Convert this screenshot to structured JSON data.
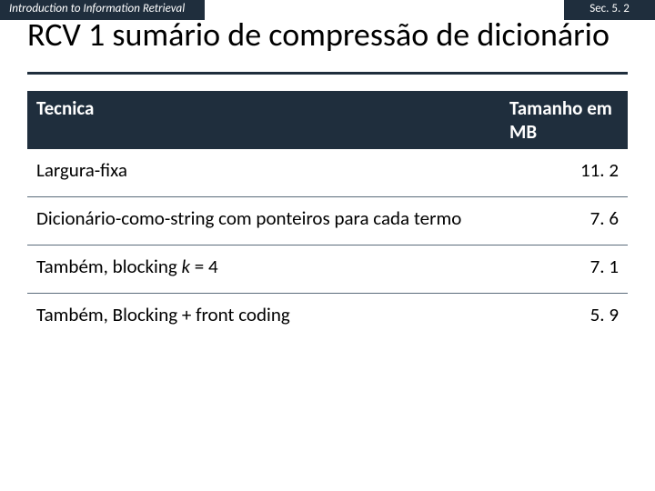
{
  "topbar": {
    "left": "Introduction to Information Retrieval",
    "right": "Sec. 5. 2"
  },
  "title": "RCV 1 sumário de compressão de dicionário",
  "table": {
    "columns": [
      "Tecnica",
      "Tamanho em MB"
    ],
    "col_widths": [
      "auto",
      "140px"
    ],
    "header_bg": "#1f2e3d",
    "header_fg": "#ffffff",
    "border_color": "#5a6b7a",
    "font_size": 21,
    "rows": [
      {
        "label": "Largura-fixa",
        "value": "11. 2"
      },
      {
        "label": "Dicionário-como-string com ponteiros para cada termo",
        "value": "7. 6"
      },
      {
        "label_html": "Também, blocking <span class=\"italic\">k</span> = 4",
        "value": "7. 1"
      },
      {
        "label": "Também, Blocking + front coding",
        "value": "5. 9"
      }
    ]
  },
  "colors": {
    "dark": "#1f2e3d",
    "bg": "#ffffff",
    "text": "#000000"
  }
}
